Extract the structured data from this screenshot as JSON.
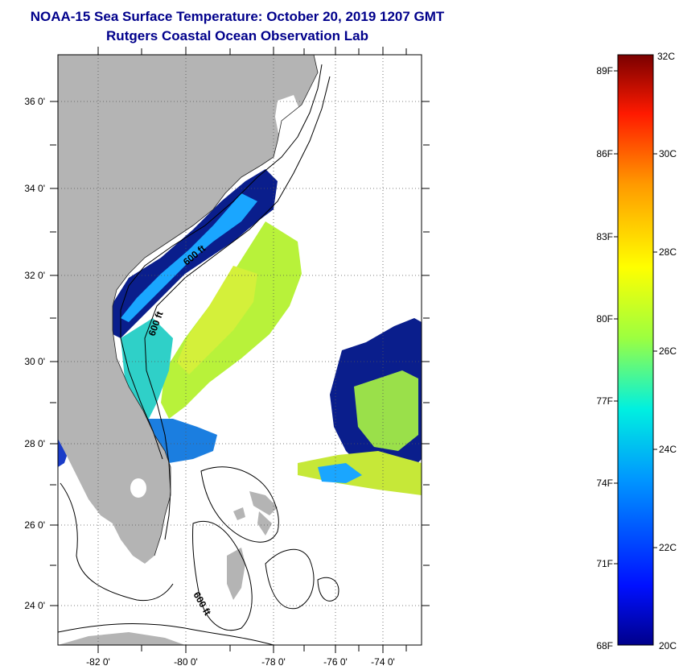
{
  "header": {
    "title_line1": "NOAA-15 Sea Surface Temperature:  October 20, 2019 1207 GMT",
    "title_line2": "Rutgers Coastal Ocean Observation Lab"
  },
  "map": {
    "lat_labels": [
      "36 0'",
      "34 0'",
      "32 0'",
      "30 0'",
      "28 0'",
      "26 0'",
      "24 0'"
    ],
    "lon_labels": [
      "-82 0'",
      "-80 0'",
      "-78 0'",
      "-76 0'",
      "-74 0'"
    ],
    "isobath_labels": [
      "600 ft",
      "600 ft",
      "600 ft"
    ],
    "colors": {
      "land": "#b4b4b4",
      "ocean_no_data": "#ffffff",
      "cold_water": "#0a1e8c",
      "mid_water": "#1aa6ff",
      "warm_water": "#b8f23a"
    }
  },
  "colorbar": {
    "fahrenheit_labels": [
      "89F",
      "86F",
      "83F",
      "80F",
      "77F",
      "74F",
      "71F",
      "68F"
    ],
    "celsius_labels": [
      "32C",
      "30C",
      "28C",
      "26C",
      "24C",
      "22C",
      "20C"
    ],
    "scale_min_c": 20,
    "scale_max_c": 32
  }
}
